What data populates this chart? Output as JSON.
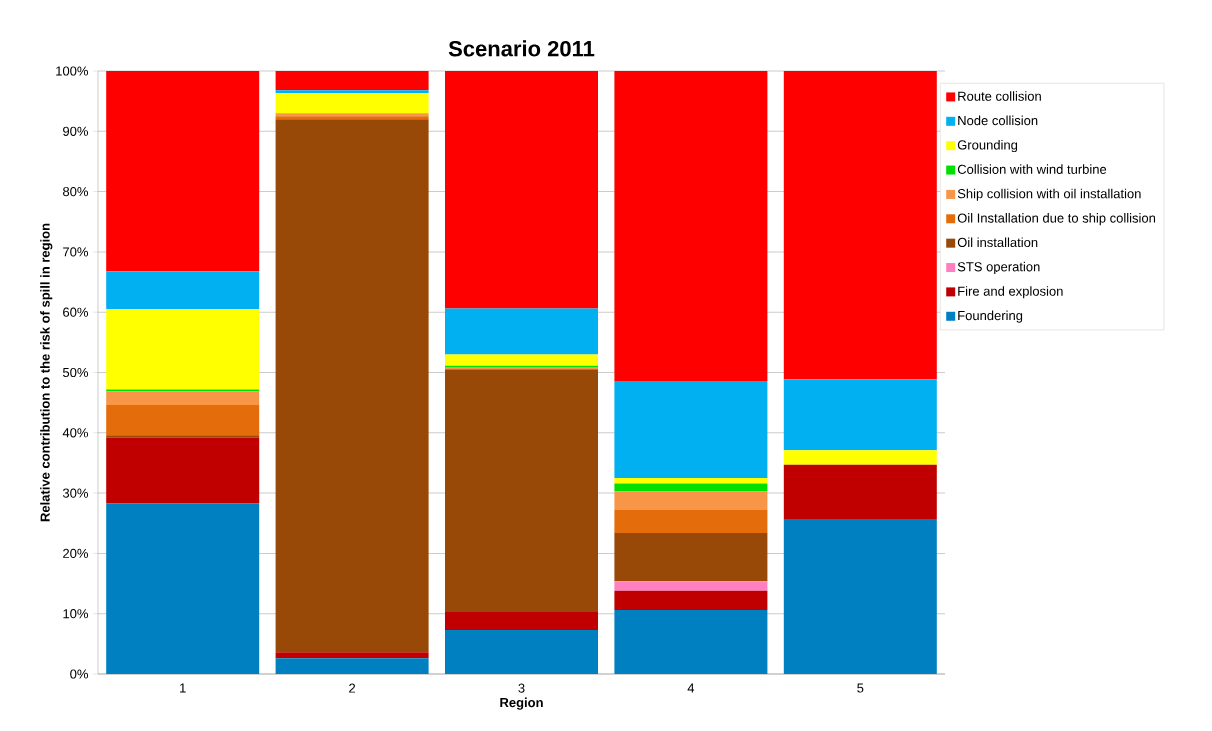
{
  "chart_data": {
    "type": "bar",
    "stacked": true,
    "title": "Scenario 2011",
    "xlabel": "Region",
    "ylabel": "Relative contribution to the risk of spill  in region",
    "categories": [
      "1",
      "2",
      "3",
      "4",
      "5"
    ],
    "series": [
      {
        "name": "Foundering",
        "color": "#0080c0",
        "values": [
          28.3,
          2.6,
          7.3,
          10.6,
          25.7
        ]
      },
      {
        "name": "Fire and explosion",
        "color": "#c00000",
        "values": [
          10.9,
          1.0,
          3.0,
          3.2,
          9.0
        ]
      },
      {
        "name": "STS operation",
        "color": "#ff80c0",
        "values": [
          0,
          0,
          0,
          1.6,
          0
        ]
      },
      {
        "name": "Oil installation",
        "color": "#984807",
        "values": [
          0.4,
          88.4,
          40.1,
          8.0,
          0
        ]
      },
      {
        "name": "Oil Installation due to ship collision",
        "color": "#e46c0a",
        "values": [
          5.0,
          0.5,
          0.2,
          3.8,
          0
        ]
      },
      {
        "name": "Ship collision with oil installation",
        "color": "#f79646",
        "values": [
          2.3,
          0.5,
          0.3,
          3.1,
          0
        ]
      },
      {
        "name": "Collision with wind turbine",
        "color": "#00e000",
        "values": [
          0.3,
          0,
          0.2,
          1.3,
          0
        ]
      },
      {
        "name": "Grounding",
        "color": "#ffff00",
        "values": [
          13.3,
          3.3,
          1.9,
          0.9,
          2.4
        ]
      },
      {
        "name": "Node collision",
        "color": "#00b0f0",
        "values": [
          6.3,
          0.5,
          7.6,
          16.1,
          11.8
        ]
      },
      {
        "name": "Route collision",
        "color": "#ff0000",
        "values": [
          33.2,
          3.2,
          39.4,
          51.4,
          51.1
        ]
      }
    ],
    "ylim": [
      0,
      100
    ],
    "yticks": [
      {
        "value": 0,
        "label": "0%"
      },
      {
        "value": 10,
        "label": "10%"
      },
      {
        "value": 20,
        "label": "20%"
      },
      {
        "value": 30,
        "label": "30%"
      },
      {
        "value": 40,
        "label": "40%"
      },
      {
        "value": 50,
        "label": "50%"
      },
      {
        "value": 60,
        "label": "60%"
      },
      {
        "value": 70,
        "label": "70%"
      },
      {
        "value": 80,
        "label": "80%"
      },
      {
        "value": 90,
        "label": "90%"
      },
      {
        "value": 100,
        "label": "100%"
      }
    ],
    "grid": "y",
    "legend": "right"
  }
}
